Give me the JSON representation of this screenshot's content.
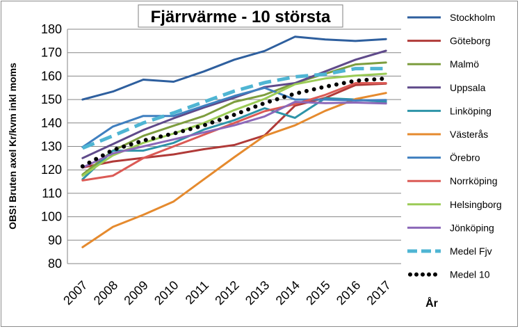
{
  "chart_data": {
    "type": "line",
    "title": "Fjärrvärme - 10 största",
    "xlabel": "År",
    "ylabel": "OBS! Bruten axel Kr/kvm inkl moms",
    "x": [
      "2007",
      "2008",
      "2009",
      "2010",
      "2011",
      "2012",
      "2013",
      "2014",
      "2015",
      "2016",
      "2017"
    ],
    "ylim": [
      80,
      180
    ],
    "yticks": [
      "80",
      "90",
      "100",
      "110",
      "120",
      "130",
      "140",
      "150",
      "160",
      "170",
      "180"
    ],
    "grid": true,
    "legend": "right",
    "series": [
      {
        "name": "Stockholm",
        "color": "#2e5f9e",
        "style": "solid",
        "values": [
          150.0,
          153.4,
          158.5,
          157.6,
          162.0,
          167.0,
          170.7,
          176.8,
          175.6,
          175.0,
          175.8
        ]
      },
      {
        "name": "Göteborg",
        "color": "#b03a38",
        "style": "solid",
        "values": [
          121.0,
          123.6,
          125.1,
          126.6,
          128.8,
          130.6,
          134.7,
          147.4,
          150.7,
          156.2,
          156.8
        ]
      },
      {
        "name": "Malmö",
        "color": "#7d9d3e",
        "style": "solid",
        "values": [
          118.0,
          128.2,
          134.5,
          138.8,
          143.0,
          149.0,
          152.0,
          157.0,
          161.0,
          165.0,
          165.8
        ]
      },
      {
        "name": "Uppsala",
        "color": "#5f4a8a",
        "style": "solid",
        "values": [
          125.0,
          131.0,
          137.0,
          142.0,
          146.6,
          150.8,
          155.3,
          157.0,
          162.0,
          167.0,
          170.8
        ]
      },
      {
        "name": "Linköping",
        "color": "#2e94a8",
        "style": "solid",
        "values": [
          116.0,
          128.2,
          128.2,
          131.5,
          137.2,
          141.2,
          146.3,
          142.2,
          150.6,
          150.0,
          149.0
        ]
      },
      {
        "name": "Västerås",
        "color": "#e58a2e",
        "style": "solid",
        "values": [
          87.0,
          95.7,
          100.8,
          106.5,
          116.0,
          125.4,
          134.5,
          139.0,
          145.2,
          150.2,
          152.8
        ]
      },
      {
        "name": "Örebro",
        "color": "#3f7fbf",
        "style": "solid",
        "values": [
          129.7,
          138.5,
          143.0,
          143.0,
          147.3,
          151.5,
          155.0,
          150.0,
          150.0,
          149.6,
          149.8
        ]
      },
      {
        "name": "Norrköping",
        "color": "#db5a55",
        "style": "solid",
        "values": [
          115.5,
          117.5,
          125.0,
          130.0,
          135.0,
          140.0,
          145.0,
          148.0,
          152.0,
          157.0,
          157.0
        ]
      },
      {
        "name": "Helsingborg",
        "color": "#9bcb56",
        "style": "solid",
        "values": [
          117.5,
          126.2,
          131.5,
          135.5,
          140.0,
          145.5,
          150.3,
          156.5,
          159.0,
          160.2,
          161.0
        ]
      },
      {
        "name": "Jönköping",
        "color": "#8c68b8",
        "style": "solid",
        "values": [
          121.0,
          127.0,
          130.0,
          133.0,
          136.0,
          139.0,
          142.8,
          149.0,
          148.5,
          148.7,
          148.3
        ]
      },
      {
        "name": "Medel Fjv",
        "color": "#4fb5d3",
        "style": "dashed",
        "values": [
          129.3,
          134.5,
          140.0,
          144.3,
          149.0,
          153.6,
          157.2,
          159.7,
          160.8,
          163.2,
          163.2
        ]
      },
      {
        "name": "Medel 10",
        "color": "#000000",
        "style": "dotted",
        "values": [
          121.5,
          128.5,
          132.5,
          135.5,
          139.0,
          143.5,
          148.5,
          152.5,
          155.5,
          158.0,
          159.0
        ]
      }
    ]
  }
}
